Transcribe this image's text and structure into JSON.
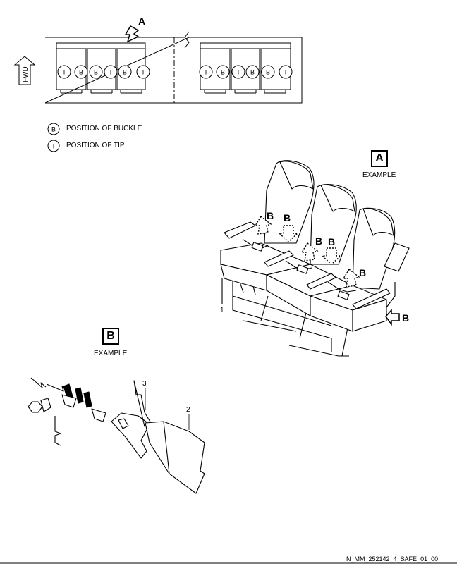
{
  "top_view": {
    "view_ref": "A",
    "fwd_label": "FWD",
    "left_group": [
      "T",
      "B",
      "B",
      "T",
      "B",
      "T"
    ],
    "right_group": [
      "T",
      "B",
      "T",
      "B",
      "B",
      "T"
    ]
  },
  "legend": [
    {
      "symbol": "B",
      "text": "POSITION OF BUCKLE"
    },
    {
      "symbol": "T",
      "text": "POSITION OF TIP"
    }
  ],
  "detail_a": {
    "box_letter": "A",
    "caption": "EXAMPLE",
    "arrow_labels": [
      "B",
      "B",
      "B",
      "B",
      "B",
      "B"
    ],
    "callout": "1"
  },
  "detail_b": {
    "box_letter": "B",
    "caption": "EXAMPLE",
    "callouts": [
      "3",
      "2"
    ]
  },
  "figure_id": "N_MM_252142_4_SAFE_01_00"
}
